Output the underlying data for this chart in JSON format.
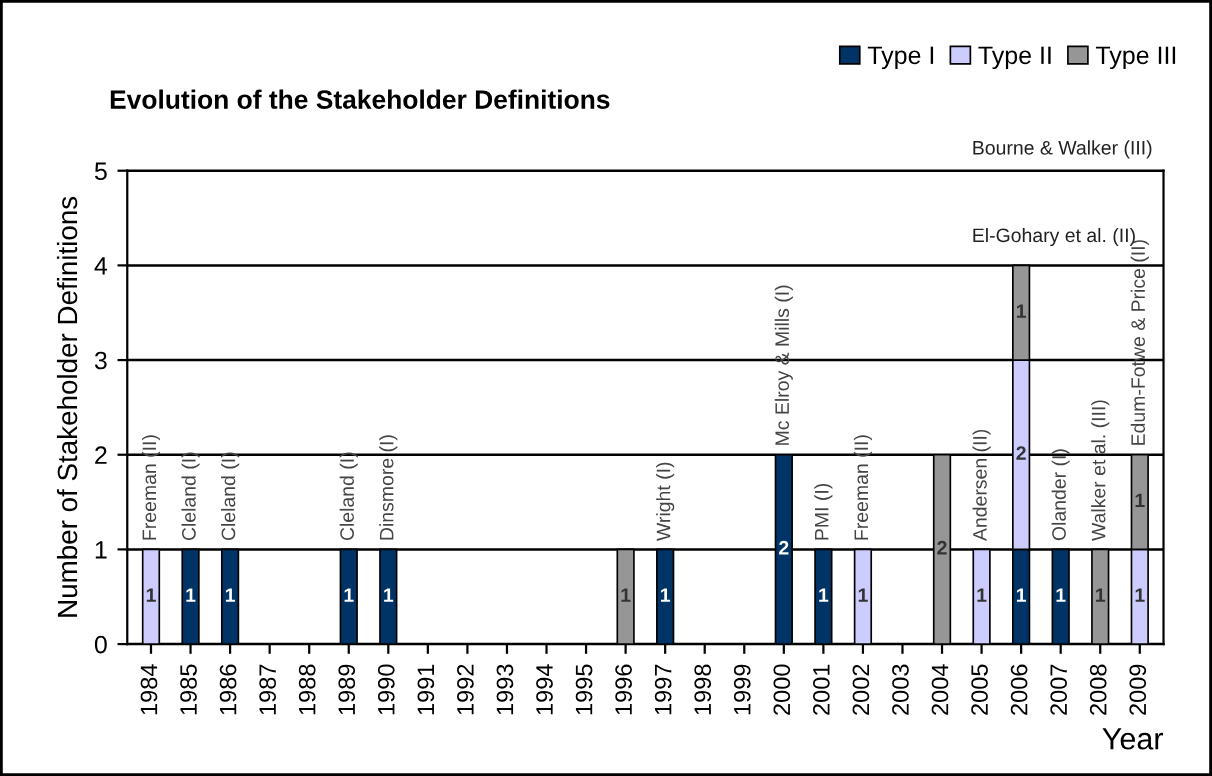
{
  "chart_data": {
    "type": "bar",
    "stacked": true,
    "title": "Evolution of the Stakeholder Definitions",
    "xlabel": "Year",
    "ylabel": "Number of Stakeholder Definitions",
    "categories": [
      "1984",
      "1985",
      "1986",
      "1987",
      "1988",
      "1989",
      "1990",
      "1991",
      "1992",
      "1993",
      "1994",
      "1995",
      "1996",
      "1997",
      "1998",
      "1999",
      "2000",
      "2001",
      "2002",
      "2003",
      "2004",
      "2005",
      "2006",
      "2007",
      "2008",
      "2009"
    ],
    "series": [
      {
        "name": "Type I",
        "color": "#003366",
        "values": [
          null,
          1,
          1,
          null,
          null,
          1,
          1,
          null,
          null,
          null,
          null,
          null,
          null,
          1,
          null,
          null,
          2,
          1,
          null,
          null,
          null,
          null,
          1,
          1,
          null,
          null
        ]
      },
      {
        "name": "Type II",
        "color": "#ccccff",
        "values": [
          1,
          null,
          null,
          null,
          null,
          null,
          null,
          null,
          null,
          null,
          null,
          null,
          null,
          null,
          null,
          null,
          null,
          null,
          1,
          null,
          null,
          1,
          2,
          null,
          null,
          1
        ]
      },
      {
        "name": "Type III",
        "color": "#969696",
        "values": [
          null,
          null,
          null,
          null,
          null,
          null,
          null,
          null,
          null,
          null,
          null,
          null,
          1,
          null,
          null,
          null,
          null,
          null,
          null,
          null,
          2,
          null,
          1,
          null,
          1,
          1
        ]
      }
    ],
    "ylim": [
      0,
      5
    ],
    "yticks": [
      0,
      1,
      2,
      3,
      4,
      5
    ],
    "grid": "y",
    "legend": "top right",
    "data_labels": true,
    "annotations": [
      {
        "text": "Freeman (II)",
        "x": "1984",
        "y": 1
      },
      {
        "text": "Cleland (I)",
        "x": "1985",
        "y": 1
      },
      {
        "text": "Cleland (I)",
        "x": "1986",
        "y": 1
      },
      {
        "text": "Cleland (I)",
        "x": "1989",
        "y": 1
      },
      {
        "text": "Dinsmore (I)",
        "x": "1990",
        "y": 1
      },
      {
        "text": "Wright (I)",
        "x": "1997",
        "y": 1
      },
      {
        "text": "Mc Elroy & Mills (I)",
        "x": "2000",
        "y": 2
      },
      {
        "text": "PMI (I)",
        "x": "2001",
        "y": 1
      },
      {
        "text": "Freeman (II)",
        "x": "2002",
        "y": 1
      },
      {
        "text": "Andersen (II)",
        "x": "2005",
        "y": 1
      },
      "El-Gohary et al. (II)",
      "Bourne & Walker (III)",
      {
        "text": "Olander (I)",
        "x": "2007",
        "y": 1
      },
      {
        "text": "Walker et al. (III)",
        "x": "2008",
        "y": 1
      },
      {
        "text": "Edum-Fotwe & Price (II)",
        "x": "2009",
        "y": 2
      }
    ]
  }
}
